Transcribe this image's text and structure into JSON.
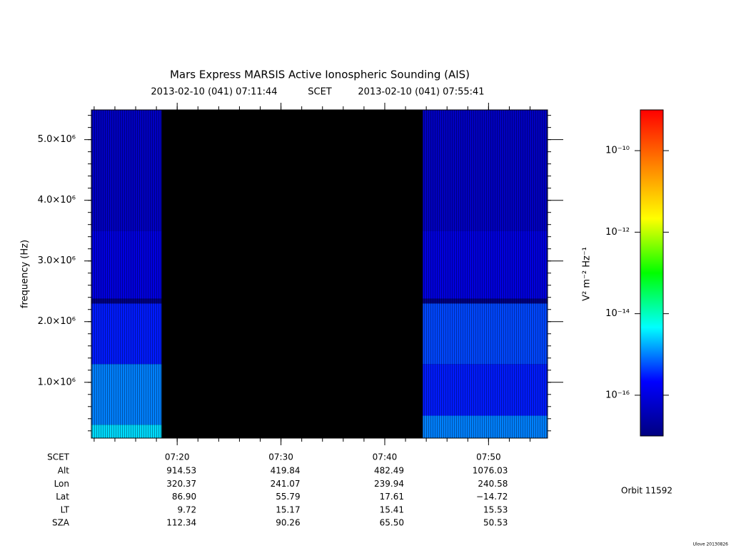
{
  "chart_data": {
    "type": "spectrogram",
    "title": "Mars Express MARSIS Active Ionospheric Sounding (AIS)",
    "subtitle": {
      "start": "2013-02-10 (041) 07:11:44",
      "label": "SCET",
      "end": "2013-02-10 (041) 07:55:41"
    },
    "ylabel": "frequency (Hz)",
    "xlim": [
      431.733,
      475.683
    ],
    "xticks": [
      {
        "value": 440,
        "label": "07:20"
      },
      {
        "value": 450,
        "label": "07:30"
      },
      {
        "value": 460,
        "label": "07:40"
      },
      {
        "value": 470,
        "label": "07:50"
      }
    ],
    "ylim": [
      80000,
      5490000
    ],
    "yticks": [
      {
        "value": 1000000,
        "label": "1.0×10⁶"
      },
      {
        "value": 2000000,
        "label": "2.0×10⁶"
      },
      {
        "value": 3000000,
        "label": "3.0×10⁶"
      },
      {
        "value": 4000000,
        "label": "4.0×10⁶"
      },
      {
        "value": 5000000,
        "label": "5.0×10⁶"
      }
    ],
    "segments": [
      {
        "start": 431.733,
        "end": 438.5,
        "bands": [
          {
            "from": 80000,
            "to": 300000,
            "value": 3e-15
          },
          {
            "from": 300000,
            "to": 1300000,
            "value": 1e-15
          },
          {
            "from": 1300000,
            "to": 2300000,
            "value": 3e-16
          },
          {
            "from": 2300000,
            "to": 2380000,
            "value": 1e-17
          },
          {
            "from": 2380000,
            "to": 3500000,
            "value": 1e-16
          },
          {
            "from": 3500000,
            "to": 5490000,
            "value": 5e-17
          }
        ]
      },
      {
        "start": 463.667,
        "end": 475.683,
        "bands": [
          {
            "from": 80000,
            "to": 450000,
            "value": 1e-15
          },
          {
            "from": 450000,
            "to": 1300000,
            "value": 3e-16
          },
          {
            "from": 1300000,
            "to": 2300000,
            "value": 5e-16
          },
          {
            "from": 2300000,
            "to": 2380000,
            "value": 1e-17
          },
          {
            "from": 2380000,
            "to": 3500000,
            "value": 1e-16
          },
          {
            "from": 3500000,
            "to": 5490000,
            "value": 5e-17
          }
        ]
      }
    ],
    "colorbar": {
      "label": "V² m⁻² Hz⁻¹",
      "log": true,
      "lim": [
        1e-17,
        1e-09
      ],
      "ticks": [
        {
          "value": 1e-16,
          "label": "10⁻¹⁶"
        },
        {
          "value": 1e-14,
          "label": "10⁻¹⁴"
        },
        {
          "value": 1e-12,
          "label": "10⁻¹²"
        },
        {
          "value": 1e-10,
          "label": "10⁻¹⁰"
        }
      ],
      "colors": [
        "#000080",
        "#0000ff",
        "#00ffff",
        "#00ff00",
        "#ffff00",
        "#ff8000",
        "#ff0000"
      ]
    },
    "ephemeris": {
      "scet_label": "SCET",
      "rows": [
        {
          "label": "Alt",
          "values": [
            "914.53",
            "419.84",
            "482.49",
            "1076.03"
          ]
        },
        {
          "label": "Lon",
          "values": [
            "320.37",
            "241.07",
            "239.94",
            "240.58"
          ]
        },
        {
          "label": "Lat",
          "values": [
            "86.90",
            "55.79",
            "17.61",
            "−14.72"
          ]
        },
        {
          "label": "LT",
          "values": [
            "9.72",
            "15.17",
            "15.41",
            "15.53"
          ]
        },
        {
          "label": "SZA",
          "values": [
            "112.34",
            "90.26",
            "65.50",
            "50.53"
          ]
        }
      ]
    },
    "orbit": "Orbit 11592",
    "footer": "Ulove 20130826"
  }
}
